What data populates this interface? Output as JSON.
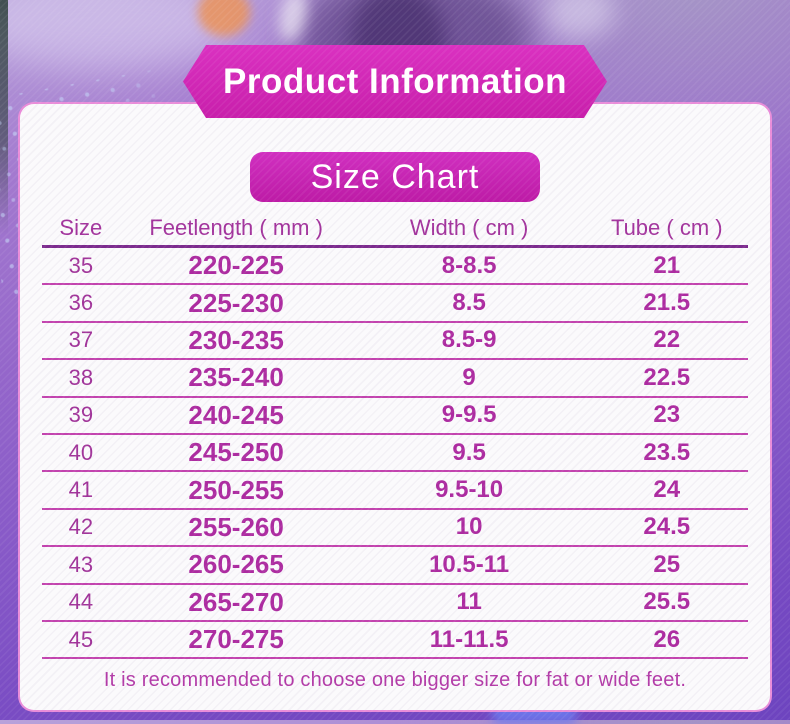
{
  "banner": {
    "title": "Product Information"
  },
  "size_chart": {
    "title": "Size Chart",
    "columns": [
      "Size",
      "Feetlength ( mm )",
      "Width ( cm )",
      "Tube ( cm )"
    ],
    "rows": [
      [
        "35",
        "220-225",
        "8-8.5",
        "21"
      ],
      [
        "36",
        "225-230",
        "8.5",
        "21.5"
      ],
      [
        "37",
        "230-235",
        "8.5-9",
        "22"
      ],
      [
        "38",
        "235-240",
        "9",
        "22.5"
      ],
      [
        "39",
        "240-245",
        "9-9.5",
        "23"
      ],
      [
        "40",
        "245-250",
        "9.5",
        "23.5"
      ],
      [
        "41",
        "250-255",
        "9.5-10",
        "24"
      ],
      [
        "42",
        "255-260",
        "10",
        "24.5"
      ],
      [
        "43",
        "260-265",
        "10.5-11",
        "25"
      ],
      [
        "44",
        "265-270",
        "11",
        "25.5"
      ],
      [
        "45",
        "270-275",
        "11-11.5",
        "26"
      ]
    ],
    "note": "It is recommended to choose one bigger size for fat or wide feet."
  },
  "colors": {
    "banner_magenta": "#d02bb9",
    "badge_magenta": "#c724b0",
    "header_text": "#a2339c",
    "data_text": "#ac2ba0",
    "row_line": "#c243ae",
    "header_line": "#7c2b8e",
    "card_border": "#de52c6",
    "note_text": "#b23aa7",
    "background_purple": "#9466ca"
  }
}
